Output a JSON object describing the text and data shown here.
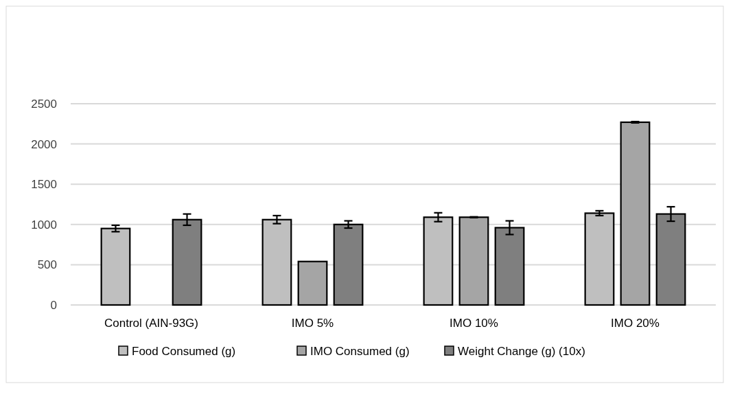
{
  "chart_data": {
    "type": "bar",
    "categories": [
      "Control (AIN-93G)",
      "IMO 5%",
      "IMO 10%",
      "IMO 20%"
    ],
    "series": [
      {
        "name": "Food Consumed (g)",
        "color": "#bfbfbf",
        "values": [
          950,
          1060,
          1090,
          1140
        ],
        "errors": [
          40,
          50,
          55,
          30
        ]
      },
      {
        "name": "IMO Consumed (g)",
        "color": "#a5a5a5",
        "values": [
          null,
          540,
          1090,
          2270
        ],
        "errors": [
          null,
          null,
          5,
          8
        ]
      },
      {
        "name": "Weight Change (g) (10x)",
        "color": "#7f7f7f",
        "values": [
          1060,
          1000,
          960,
          1130
        ],
        "errors": [
          70,
          45,
          85,
          90
        ]
      }
    ],
    "ylim": [
      0,
      2500
    ],
    "yticks": [
      0,
      500,
      1000,
      1500,
      2000,
      2500
    ],
    "grid": "y",
    "legend": "bottom"
  }
}
